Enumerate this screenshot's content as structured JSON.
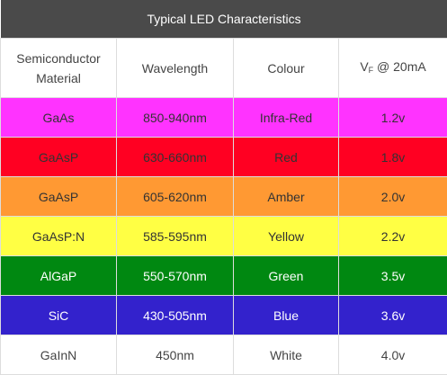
{
  "table": {
    "title": "Typical LED Characteristics",
    "headers": {
      "material_line1": "Semiconductor",
      "material_line2": "Material",
      "wavelength": "Wavelength",
      "colour": "Colour",
      "vf_main": "V",
      "vf_sub": "F",
      "vf_suffix": " @ 20mA"
    },
    "rows": [
      {
        "material": "GaAs",
        "wavelength": "850-940nm",
        "colour": "Infra-Red",
        "vf": "1.2v",
        "bg": "#ff33ff",
        "fg": "#333333"
      },
      {
        "material": "GaAsP",
        "wavelength": "630-660nm",
        "colour": "Red",
        "vf": "1.8v",
        "bg": "#ff0022",
        "fg": "#333333"
      },
      {
        "material": "GaAsP",
        "wavelength": "605-620nm",
        "colour": "Amber",
        "vf": "2.0v",
        "bg": "#ff9933",
        "fg": "#333333"
      },
      {
        "material": "GaAsP:N",
        "wavelength": "585-595nm",
        "colour": "Yellow",
        "vf": "2.2v",
        "bg": "#ffff44",
        "fg": "#333333"
      },
      {
        "material": "AlGaP",
        "wavelength": "550-570nm",
        "colour": "Green",
        "vf": "3.5v",
        "bg": "#008811",
        "fg": "#ffffff"
      },
      {
        "material": "SiC",
        "wavelength": "430-505nm",
        "colour": "Blue",
        "vf": "3.6v",
        "bg": "#3322cc",
        "fg": "#ffffff"
      },
      {
        "material": "GaInN",
        "wavelength": "450nm",
        "colour": "White",
        "vf": "4.0v",
        "bg": "#ffffff",
        "fg": "#444444"
      }
    ]
  }
}
